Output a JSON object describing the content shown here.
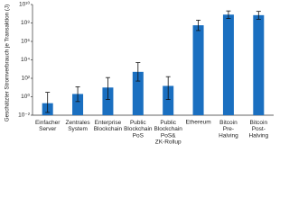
{
  "chart_data": {
    "type": "bar",
    "log_scale": true,
    "color": "#1a6fc0",
    "y_label": "Geschätzter Stromverbrauch je Transaktion (J)",
    "categories": [
      "Einfacher\nServer",
      "Zentrales\nSystem",
      "Enterprise\nBlockchain",
      "Public\nBlockchain\nPoS",
      "Public\nBlockchain\nPoS&\nZK-Rollup",
      "Ethereum",
      "Bitcoin\nPre-\nHalving",
      "Bitcoin\nPost-\nHalving"
    ],
    "values": [
      0.2,
      2,
      10,
      500,
      15,
      56000000,
      800000000,
      700000000
    ],
    "error_low": [
      0.02,
      0.3,
      0.5,
      50,
      0.5,
      15000000,
      300000000,
      250000000
    ],
    "error_high": [
      3,
      12,
      120,
      5000,
      150,
      200000000,
      2000000000,
      1800000000
    ],
    "ylim": [
      0.01,
      10000000000
    ],
    "yticks": [
      {
        "value": 0.01,
        "label": "10⁻²"
      },
      {
        "value": 1,
        "label": "10⁰"
      },
      {
        "value": 100,
        "label": "10²"
      },
      {
        "value": 10000,
        "label": "10⁴"
      },
      {
        "value": 1000000,
        "label": "10⁶"
      },
      {
        "value": 100000000,
        "label": "10⁸"
      },
      {
        "value": 10000000000,
        "label": "10¹⁰"
      }
    ]
  }
}
